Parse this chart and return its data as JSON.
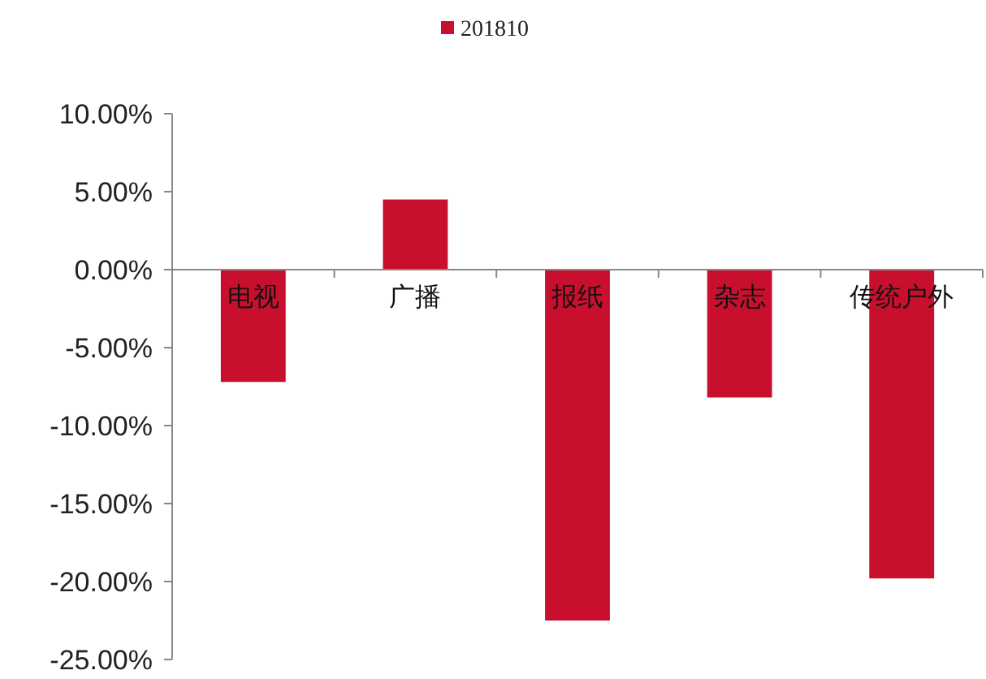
{
  "chart_data": {
    "type": "bar",
    "categories": [
      "电视",
      "广播",
      "报纸",
      "杂志",
      "传统户外"
    ],
    "series": [
      {
        "name": "201810",
        "color": "#c8102e",
        "values": [
          -7.2,
          4.5,
          -22.5,
          -8.2,
          -19.8
        ]
      }
    ],
    "ylim": [
      -25,
      10
    ],
    "yticks": [
      {
        "value": 10,
        "label": "10.00%"
      },
      {
        "value": 5,
        "label": "5.00%"
      },
      {
        "value": 0,
        "label": "0.00%"
      },
      {
        "value": -5,
        "label": "-5.00%"
      },
      {
        "value": -10,
        "label": "-10.00%"
      },
      {
        "value": -15,
        "label": "-15.00%"
      },
      {
        "value": -20,
        "label": "-20.00%"
      },
      {
        "value": -25,
        "label": "-25.00%"
      }
    ],
    "legend": "top",
    "grid": false
  }
}
